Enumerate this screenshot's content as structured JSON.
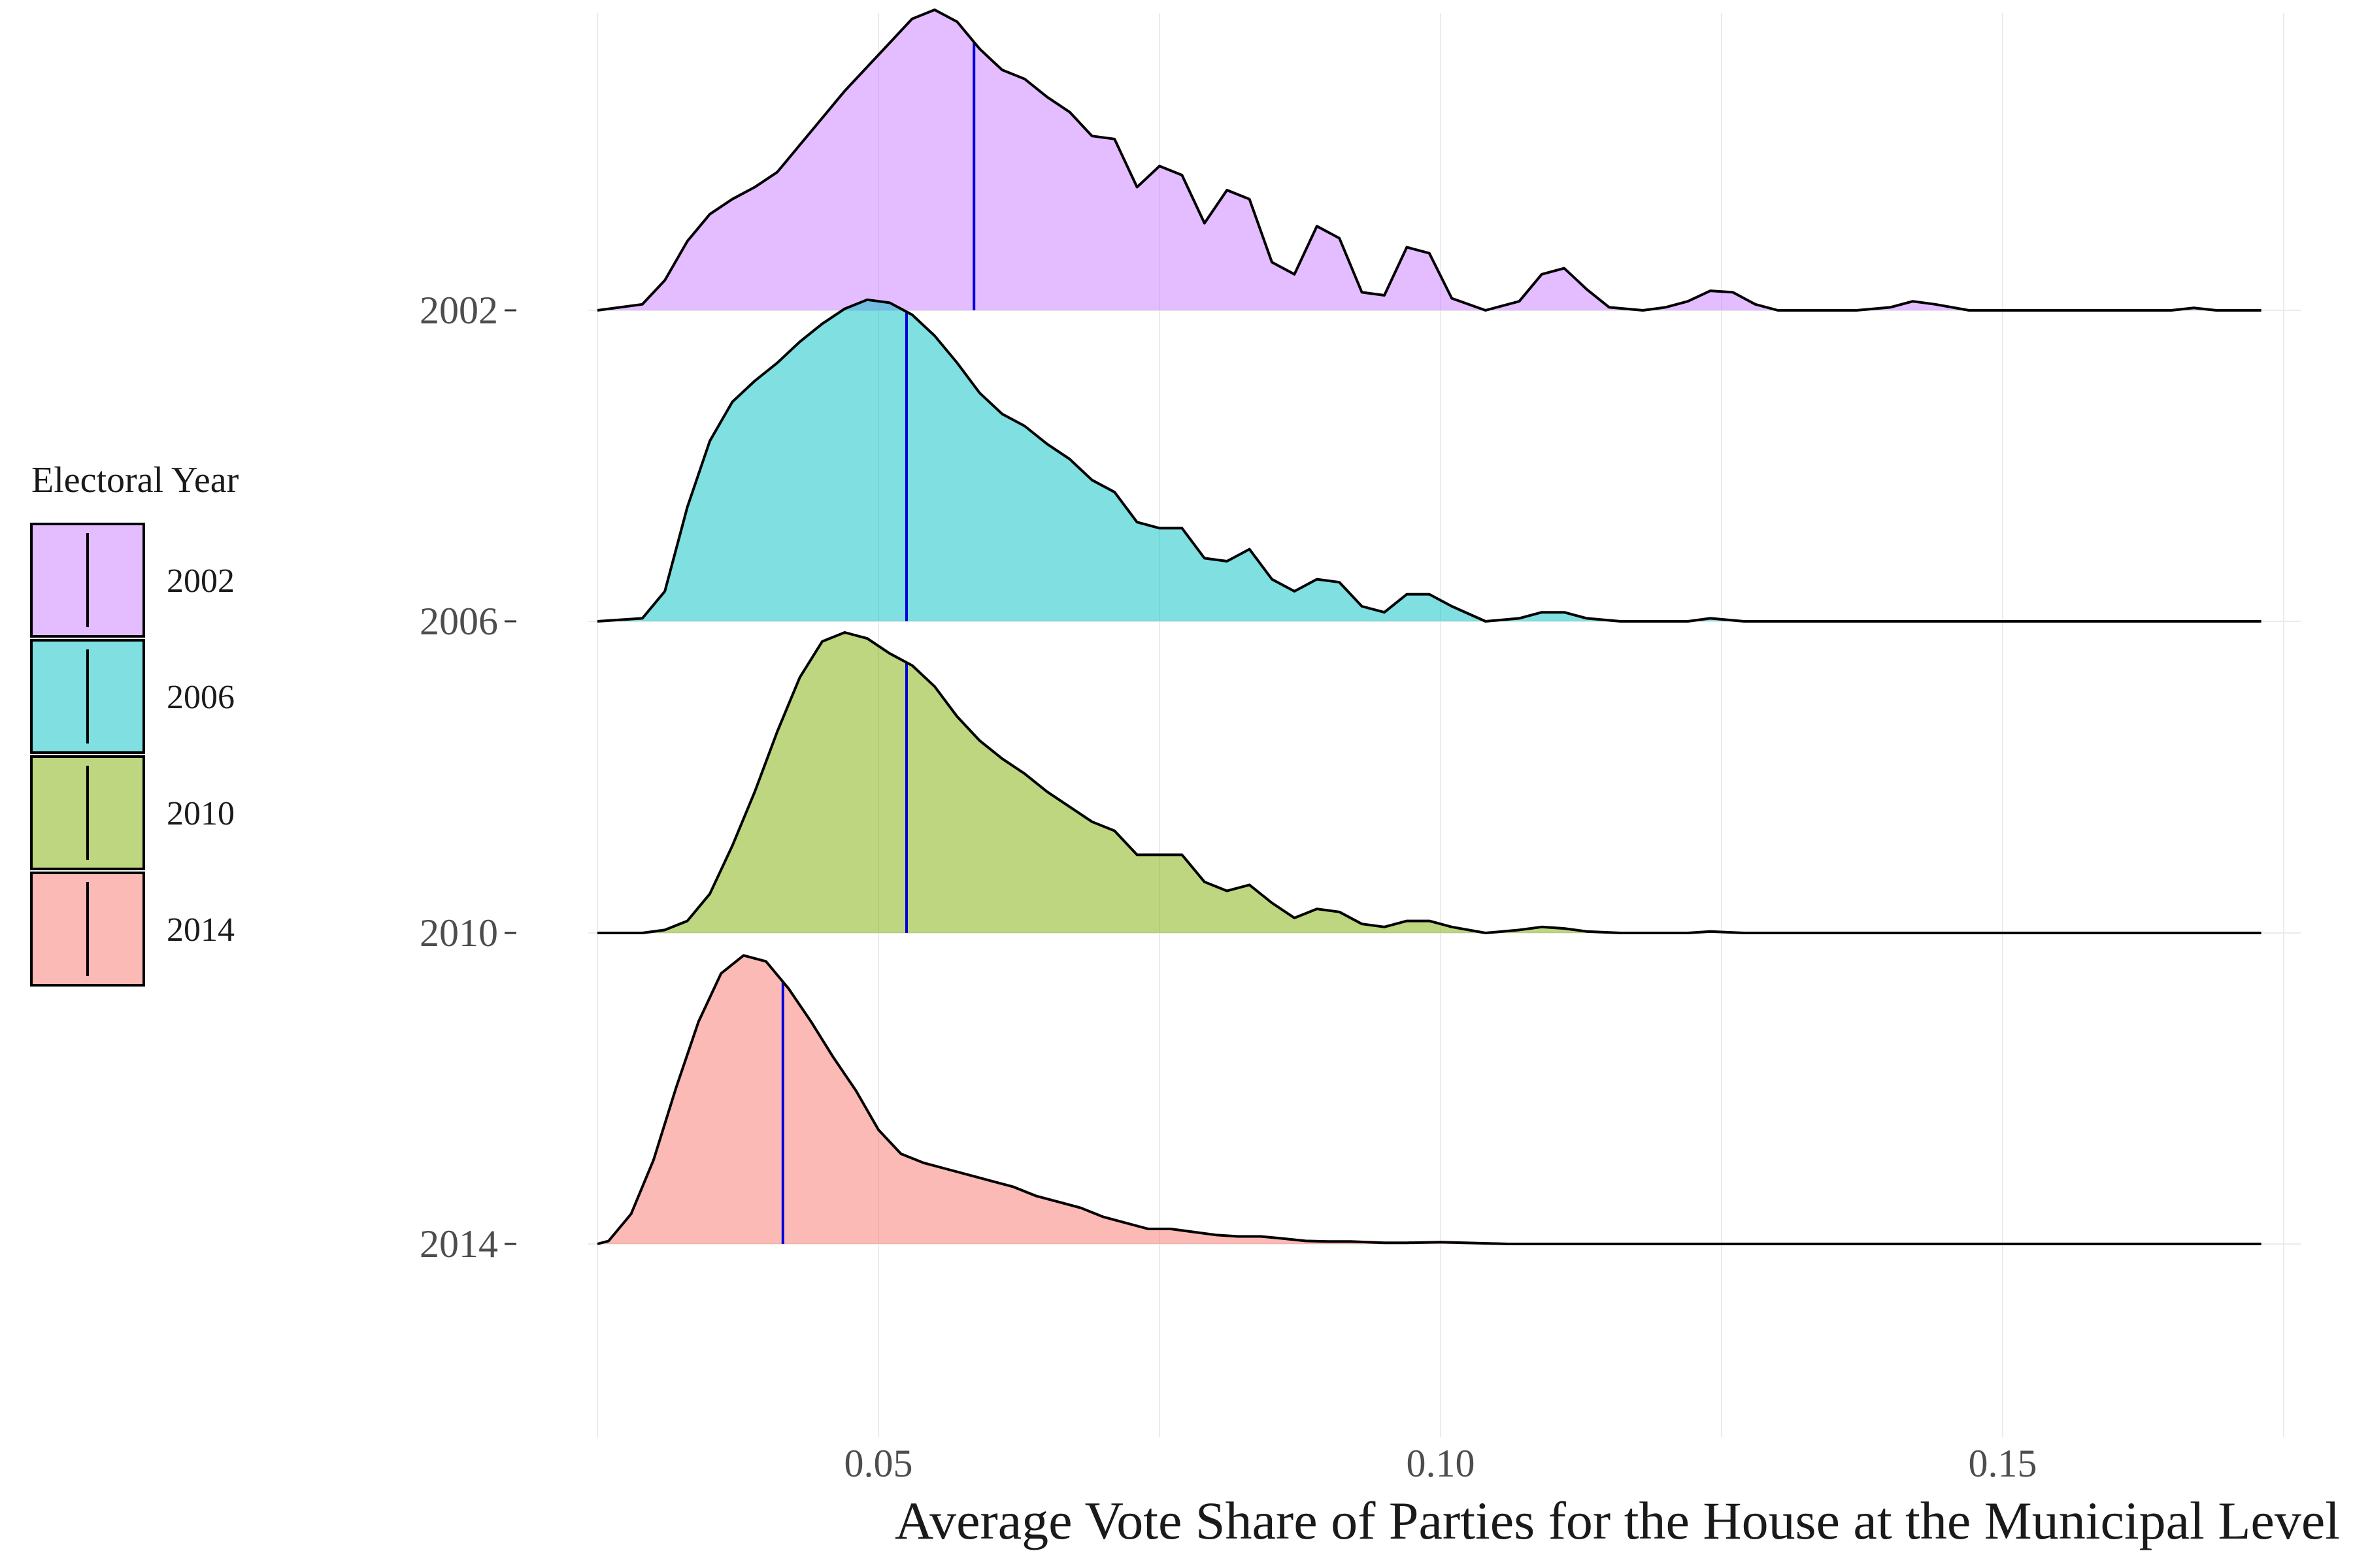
{
  "chart_data": {
    "type": "ridgeline-density",
    "title": "",
    "xlabel": "Average Vote Share of Parties for the House at the Municipal Level",
    "ylabel": "",
    "xlim": [
      0.0225,
      0.1775
    ],
    "x_ticks": [
      0.05,
      0.1,
      0.15
    ],
    "x_tick_labels": [
      "0.05",
      "0.10",
      "0.15"
    ],
    "grid": true,
    "legend": {
      "title": "Electoral Year",
      "position": "left"
    },
    "median_line_color": "#0000dd",
    "outline_color": "#000000",
    "series": [
      {
        "name": "2002",
        "color": "#c77cff",
        "median": 0.0585,
        "density": [
          [
            0.025,
            0.0
          ],
          [
            0.029,
            0.02
          ],
          [
            0.031,
            0.1
          ],
          [
            0.033,
            0.23
          ],
          [
            0.035,
            0.32
          ],
          [
            0.037,
            0.37
          ],
          [
            0.039,
            0.41
          ],
          [
            0.041,
            0.46
          ],
          [
            0.043,
            0.55
          ],
          [
            0.045,
            0.64
          ],
          [
            0.047,
            0.73
          ],
          [
            0.049,
            0.81
          ],
          [
            0.051,
            0.89
          ],
          [
            0.053,
            0.97
          ],
          [
            0.055,
            1.0
          ],
          [
            0.057,
            0.96
          ],
          [
            0.059,
            0.87
          ],
          [
            0.061,
            0.8
          ],
          [
            0.063,
            0.77
          ],
          [
            0.065,
            0.71
          ],
          [
            0.067,
            0.66
          ],
          [
            0.069,
            0.58
          ],
          [
            0.071,
            0.57
          ],
          [
            0.073,
            0.41
          ],
          [
            0.075,
            0.48
          ],
          [
            0.077,
            0.45
          ],
          [
            0.079,
            0.29
          ],
          [
            0.081,
            0.4
          ],
          [
            0.083,
            0.37
          ],
          [
            0.085,
            0.16
          ],
          [
            0.087,
            0.12
          ],
          [
            0.089,
            0.28
          ],
          [
            0.091,
            0.24
          ],
          [
            0.093,
            0.06
          ],
          [
            0.095,
            0.05
          ],
          [
            0.097,
            0.21
          ],
          [
            0.099,
            0.19
          ],
          [
            0.101,
            0.04
          ],
          [
            0.104,
            0.0
          ],
          [
            0.107,
            0.03
          ],
          [
            0.109,
            0.12
          ],
          [
            0.111,
            0.14
          ],
          [
            0.113,
            0.07
          ],
          [
            0.115,
            0.01
          ],
          [
            0.118,
            0.0
          ],
          [
            0.12,
            0.01
          ],
          [
            0.122,
            0.03
          ],
          [
            0.124,
            0.065
          ],
          [
            0.126,
            0.06
          ],
          [
            0.128,
            0.02
          ],
          [
            0.13,
            0.0
          ],
          [
            0.137,
            0.0
          ],
          [
            0.14,
            0.01
          ],
          [
            0.142,
            0.03
          ],
          [
            0.144,
            0.02
          ],
          [
            0.147,
            0.0
          ],
          [
            0.165,
            0.0
          ],
          [
            0.167,
            0.008
          ],
          [
            0.169,
            0.0
          ],
          [
            0.173,
            0.0
          ]
        ]
      },
      {
        "name": "2006",
        "color": "#00bfc4",
        "median": 0.0525,
        "density": [
          [
            0.025,
            0.0
          ],
          [
            0.029,
            0.01
          ],
          [
            0.031,
            0.1
          ],
          [
            0.033,
            0.38
          ],
          [
            0.035,
            0.6
          ],
          [
            0.037,
            0.73
          ],
          [
            0.039,
            0.8
          ],
          [
            0.041,
            0.86
          ],
          [
            0.043,
            0.93
          ],
          [
            0.045,
            0.99
          ],
          [
            0.047,
            1.04
          ],
          [
            0.049,
            1.07
          ],
          [
            0.051,
            1.06
          ],
          [
            0.053,
            1.02
          ],
          [
            0.055,
            0.95
          ],
          [
            0.057,
            0.86
          ],
          [
            0.059,
            0.76
          ],
          [
            0.061,
            0.69
          ],
          [
            0.063,
            0.65
          ],
          [
            0.065,
            0.59
          ],
          [
            0.067,
            0.54
          ],
          [
            0.069,
            0.47
          ],
          [
            0.071,
            0.43
          ],
          [
            0.073,
            0.33
          ],
          [
            0.075,
            0.31
          ],
          [
            0.077,
            0.31
          ],
          [
            0.079,
            0.21
          ],
          [
            0.081,
            0.2
          ],
          [
            0.083,
            0.24
          ],
          [
            0.085,
            0.14
          ],
          [
            0.087,
            0.1
          ],
          [
            0.089,
            0.14
          ],
          [
            0.091,
            0.13
          ],
          [
            0.093,
            0.05
          ],
          [
            0.095,
            0.03
          ],
          [
            0.097,
            0.09
          ],
          [
            0.099,
            0.09
          ],
          [
            0.101,
            0.05
          ],
          [
            0.104,
            0.0
          ],
          [
            0.107,
            0.01
          ],
          [
            0.109,
            0.03
          ],
          [
            0.111,
            0.03
          ],
          [
            0.113,
            0.01
          ],
          [
            0.116,
            0.0
          ],
          [
            0.122,
            0.0
          ],
          [
            0.124,
            0.01
          ],
          [
            0.127,
            0.0
          ],
          [
            0.173,
            0.0
          ]
        ]
      },
      {
        "name": "2010",
        "color": "#7cae00",
        "median": 0.0525,
        "density": [
          [
            0.025,
            0.0
          ],
          [
            0.029,
            0.0
          ],
          [
            0.031,
            0.01
          ],
          [
            0.033,
            0.04
          ],
          [
            0.035,
            0.13
          ],
          [
            0.037,
            0.29
          ],
          [
            0.039,
            0.47
          ],
          [
            0.041,
            0.67
          ],
          [
            0.043,
            0.85
          ],
          [
            0.045,
            0.97
          ],
          [
            0.047,
            1.0
          ],
          [
            0.049,
            0.98
          ],
          [
            0.051,
            0.93
          ],
          [
            0.053,
            0.89
          ],
          [
            0.055,
            0.82
          ],
          [
            0.057,
            0.72
          ],
          [
            0.059,
            0.64
          ],
          [
            0.061,
            0.58
          ],
          [
            0.063,
            0.53
          ],
          [
            0.065,
            0.47
          ],
          [
            0.067,
            0.42
          ],
          [
            0.069,
            0.37
          ],
          [
            0.071,
            0.34
          ],
          [
            0.073,
            0.26
          ],
          [
            0.075,
            0.26
          ],
          [
            0.077,
            0.26
          ],
          [
            0.079,
            0.17
          ],
          [
            0.081,
            0.14
          ],
          [
            0.083,
            0.16
          ],
          [
            0.085,
            0.1
          ],
          [
            0.087,
            0.05
          ],
          [
            0.089,
            0.08
          ],
          [
            0.091,
            0.07
          ],
          [
            0.093,
            0.03
          ],
          [
            0.095,
            0.02
          ],
          [
            0.097,
            0.04
          ],
          [
            0.099,
            0.04
          ],
          [
            0.101,
            0.02
          ],
          [
            0.104,
            0.0
          ],
          [
            0.107,
            0.01
          ],
          [
            0.109,
            0.02
          ],
          [
            0.111,
            0.015
          ],
          [
            0.113,
            0.005
          ],
          [
            0.116,
            0.0
          ],
          [
            0.122,
            0.0
          ],
          [
            0.124,
            0.005
          ],
          [
            0.127,
            0.0
          ],
          [
            0.173,
            0.0
          ]
        ]
      },
      {
        "name": "2014",
        "color": "#f8766d",
        "median": 0.0415,
        "density": [
          [
            0.025,
            0.0
          ],
          [
            0.026,
            0.01
          ],
          [
            0.028,
            0.1
          ],
          [
            0.03,
            0.28
          ],
          [
            0.032,
            0.52
          ],
          [
            0.034,
            0.74
          ],
          [
            0.036,
            0.9
          ],
          [
            0.038,
            0.96
          ],
          [
            0.04,
            0.94
          ],
          [
            0.042,
            0.85
          ],
          [
            0.044,
            0.74
          ],
          [
            0.046,
            0.62
          ],
          [
            0.048,
            0.51
          ],
          [
            0.05,
            0.38
          ],
          [
            0.052,
            0.3
          ],
          [
            0.054,
            0.27
          ],
          [
            0.056,
            0.25
          ],
          [
            0.058,
            0.23
          ],
          [
            0.06,
            0.21
          ],
          [
            0.062,
            0.19
          ],
          [
            0.064,
            0.16
          ],
          [
            0.066,
            0.14
          ],
          [
            0.068,
            0.12
          ],
          [
            0.07,
            0.09
          ],
          [
            0.072,
            0.07
          ],
          [
            0.074,
            0.05
          ],
          [
            0.076,
            0.05
          ],
          [
            0.078,
            0.04
          ],
          [
            0.08,
            0.03
          ],
          [
            0.082,
            0.025
          ],
          [
            0.084,
            0.025
          ],
          [
            0.086,
            0.018
          ],
          [
            0.088,
            0.01
          ],
          [
            0.09,
            0.008
          ],
          [
            0.092,
            0.008
          ],
          [
            0.095,
            0.004
          ],
          [
            0.097,
            0.004
          ],
          [
            0.1,
            0.006
          ],
          [
            0.103,
            0.003
          ],
          [
            0.106,
            0.0
          ],
          [
            0.173,
            0.0
          ]
        ]
      }
    ]
  }
}
